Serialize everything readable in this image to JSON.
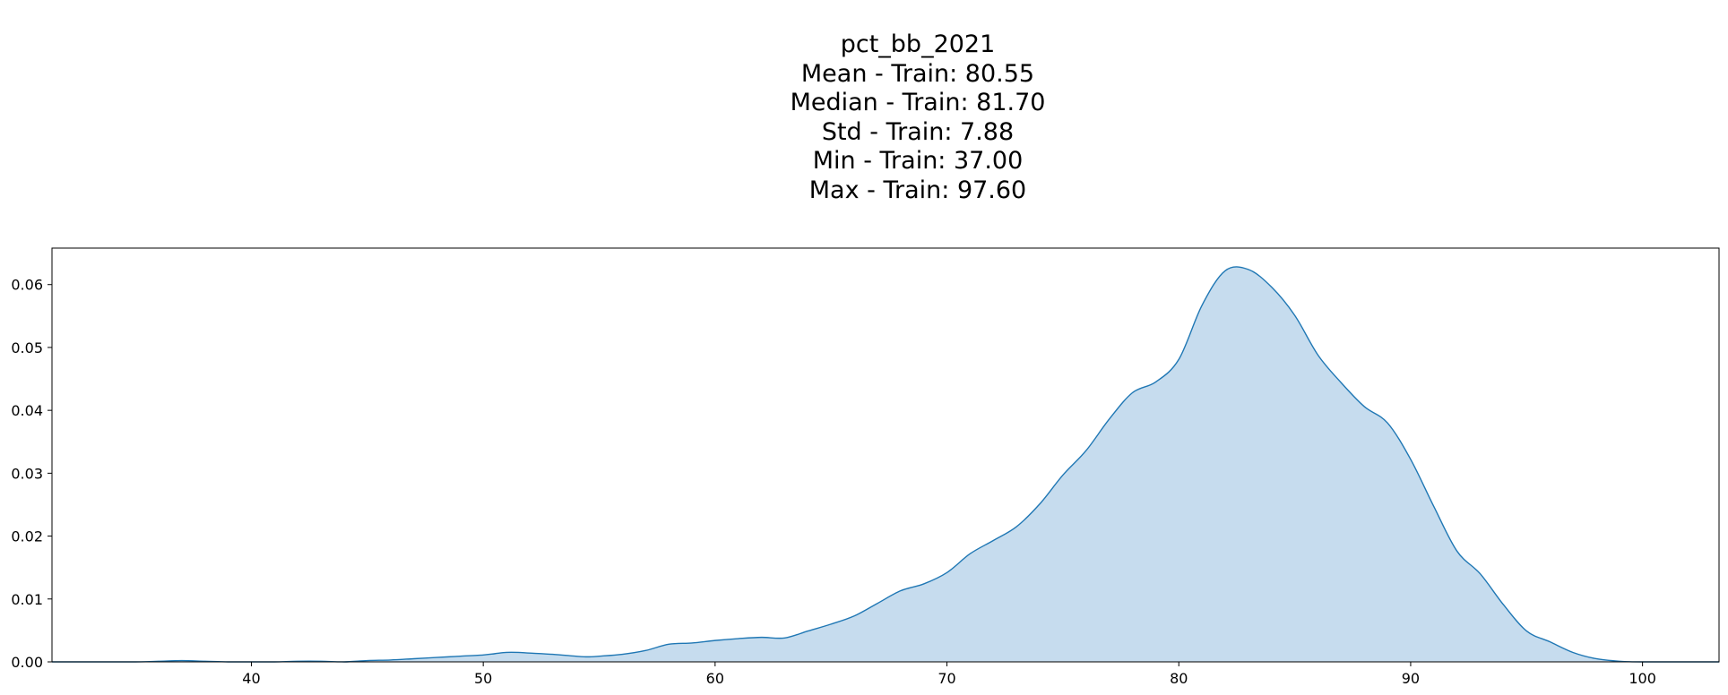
{
  "chart_data": {
    "type": "area",
    "title_lines": [
      "pct_bb_2021",
      "Mean - Train: 80.55",
      "Median - Train: 81.70",
      "Std - Train: 7.88",
      "Min - Train: 37.00",
      "Max - Train: 97.60"
    ],
    "xlabel": "",
    "ylabel": "",
    "xlim": [
      31.4,
      103.3
    ],
    "ylim": [
      0,
      0.0658
    ],
    "xticks": [
      40,
      50,
      60,
      70,
      80,
      90,
      100
    ],
    "yticks": [
      0.0,
      0.01,
      0.02,
      0.03,
      0.04,
      0.05,
      0.06
    ],
    "ytick_labels": [
      "0.00",
      "0.01",
      "0.02",
      "0.03",
      "0.04",
      "0.05",
      "0.06"
    ],
    "grid": false,
    "legend": "none",
    "line_color": "#1f77b4",
    "fill_color": "#c6dcee",
    "series": [
      {
        "x": [
          31.4,
          35,
          36,
          37,
          38,
          39,
          40,
          41,
          42,
          43,
          44,
          45,
          46,
          47,
          48,
          49,
          50,
          50.5,
          51,
          51.5,
          52,
          53,
          54,
          54.5,
          55,
          56,
          57,
          58,
          59,
          60,
          61,
          62,
          63,
          64,
          65,
          66,
          67,
          68,
          69,
          70,
          71,
          72,
          73,
          74,
          75,
          76,
          77,
          78,
          79,
          80,
          81,
          82,
          83,
          84,
          85,
          86,
          87,
          88,
          89,
          90,
          91,
          92,
          93,
          94,
          95,
          96,
          97,
          98,
          99,
          100,
          103.3
        ],
        "y": [
          0.0,
          0.0,
          0.0001,
          0.0002,
          0.0001,
          0.0,
          0.0,
          0.0,
          0.0001,
          0.0001,
          0.0,
          0.0002,
          0.0003,
          0.0005,
          0.0007,
          0.0009,
          0.0011,
          0.0013,
          0.0015,
          0.0015,
          0.0014,
          0.0012,
          0.0009,
          0.0008,
          0.0009,
          0.0012,
          0.0018,
          0.0028,
          0.003,
          0.0034,
          0.0037,
          0.0039,
          0.0038,
          0.0049,
          0.006,
          0.0073,
          0.0093,
          0.0113,
          0.0124,
          0.0142,
          0.0172,
          0.0193,
          0.0215,
          0.0251,
          0.0297,
          0.0336,
          0.0386,
          0.0428,
          0.0445,
          0.0481,
          0.0567,
          0.0622,
          0.0624,
          0.0596,
          0.0551,
          0.0488,
          0.0444,
          0.0406,
          0.038,
          0.0322,
          0.0247,
          0.0176,
          0.014,
          0.0091,
          0.0049,
          0.0032,
          0.0015,
          0.0005,
          0.0001,
          0.0,
          0.0
        ]
      }
    ]
  }
}
